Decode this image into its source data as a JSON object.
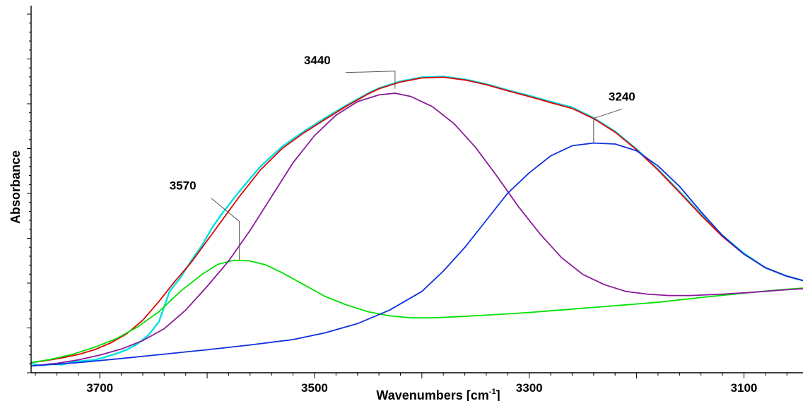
{
  "chart_data": {
    "type": "line",
    "title": "",
    "xlabel": "Wavenumbers [cm",
    "xlabel_sup": "-1",
    "xlabel_end": "]",
    "ylabel": "Absorbance",
    "xlim": [
      3764,
      3045
    ],
    "ylim": [
      0,
      1.0
    ],
    "x_reversed": true,
    "x_ticks": [
      3700,
      3500,
      3300,
      3100
    ],
    "grid": false,
    "legend": "none",
    "series": [
      {
        "color": "#00e0e0",
        "role": "measured",
        "points": [
          [
            3764,
            0.027
          ],
          [
            3755,
            0.022
          ],
          [
            3745,
            0.026
          ],
          [
            3735,
            0.024
          ],
          [
            3725,
            0.032
          ],
          [
            3715,
            0.035
          ],
          [
            3705,
            0.038
          ],
          [
            3695,
            0.046
          ],
          [
            3685,
            0.056
          ],
          [
            3675,
            0.068
          ],
          [
            3665,
            0.085
          ],
          [
            3655,
            0.11
          ],
          [
            3645,
            0.15
          ],
          [
            3635,
            0.24
          ],
          [
            3625,
            0.28
          ],
          [
            3615,
            0.33
          ],
          [
            3605,
            0.375
          ],
          [
            3595,
            0.43
          ],
          [
            3585,
            0.475
          ],
          [
            3570,
            0.535
          ],
          [
            3550,
            0.61
          ],
          [
            3530,
            0.668
          ],
          [
            3510,
            0.712
          ],
          [
            3490,
            0.752
          ],
          [
            3470,
            0.79
          ],
          [
            3450,
            0.825
          ],
          [
            3440,
            0.84
          ],
          [
            3420,
            0.86
          ],
          [
            3400,
            0.872
          ],
          [
            3380,
            0.874
          ],
          [
            3360,
            0.866
          ],
          [
            3340,
            0.852
          ],
          [
            3320,
            0.834
          ],
          [
            3300,
            0.818
          ],
          [
            3280,
            0.8
          ],
          [
            3260,
            0.783
          ],
          [
            3240,
            0.752
          ],
          [
            3220,
            0.712
          ],
          [
            3200,
            0.66
          ],
          [
            3180,
            0.6
          ],
          [
            3160,
            0.535
          ],
          [
            3140,
            0.468
          ],
          [
            3120,
            0.405
          ],
          [
            3100,
            0.352
          ],
          [
            3080,
            0.31
          ],
          [
            3060,
            0.285
          ],
          [
            3045,
            0.272
          ]
        ]
      },
      {
        "color": "#e00000",
        "role": "fit",
        "points": [
          [
            3764,
            0.03
          ],
          [
            3750,
            0.036
          ],
          [
            3735,
            0.044
          ],
          [
            3720,
            0.054
          ],
          [
            3705,
            0.068
          ],
          [
            3690,
            0.088
          ],
          [
            3675,
            0.115
          ],
          [
            3660,
            0.155
          ],
          [
            3645,
            0.21
          ],
          [
            3630,
            0.27
          ],
          [
            3615,
            0.325
          ],
          [
            3600,
            0.39
          ],
          [
            3585,
            0.455
          ],
          [
            3570,
            0.52
          ],
          [
            3550,
            0.6
          ],
          [
            3530,
            0.662
          ],
          [
            3510,
            0.708
          ],
          [
            3490,
            0.748
          ],
          [
            3470,
            0.787
          ],
          [
            3450,
            0.823
          ],
          [
            3440,
            0.838
          ],
          [
            3420,
            0.858
          ],
          [
            3400,
            0.87
          ],
          [
            3380,
            0.872
          ],
          [
            3360,
            0.864
          ],
          [
            3340,
            0.85
          ],
          [
            3320,
            0.832
          ],
          [
            3300,
            0.815
          ],
          [
            3280,
            0.797
          ],
          [
            3260,
            0.78
          ],
          [
            3240,
            0.75
          ],
          [
            3220,
            0.71
          ],
          [
            3200,
            0.658
          ],
          [
            3180,
            0.598
          ],
          [
            3160,
            0.532
          ],
          [
            3140,
            0.465
          ],
          [
            3120,
            0.402
          ],
          [
            3100,
            0.35
          ],
          [
            3080,
            0.31
          ],
          [
            3060,
            0.285
          ],
          [
            3045,
            0.272
          ]
        ]
      },
      {
        "color": "#00e000",
        "role": "component",
        "points": [
          [
            3764,
            0.03
          ],
          [
            3745,
            0.04
          ],
          [
            3725,
            0.055
          ],
          [
            3705,
            0.075
          ],
          [
            3685,
            0.1
          ],
          [
            3665,
            0.135
          ],
          [
            3645,
            0.18
          ],
          [
            3625,
            0.24
          ],
          [
            3605,
            0.29
          ],
          [
            3590,
            0.32
          ],
          [
            3575,
            0.332
          ],
          [
            3560,
            0.33
          ],
          [
            3545,
            0.318
          ],
          [
            3530,
            0.295
          ],
          [
            3510,
            0.26
          ],
          [
            3490,
            0.225
          ],
          [
            3470,
            0.2
          ],
          [
            3450,
            0.18
          ],
          [
            3430,
            0.168
          ],
          [
            3410,
            0.162
          ],
          [
            3390,
            0.162
          ],
          [
            3370,
            0.165
          ],
          [
            3340,
            0.17
          ],
          [
            3300,
            0.178
          ],
          [
            3260,
            0.188
          ],
          [
            3220,
            0.198
          ],
          [
            3180,
            0.208
          ],
          [
            3140,
            0.222
          ],
          [
            3100,
            0.235
          ],
          [
            3070,
            0.244
          ],
          [
            3045,
            0.25
          ]
        ]
      },
      {
        "color": "#8a1a9a",
        "role": "component",
        "points": [
          [
            3764,
            0.02
          ],
          [
            3740,
            0.028
          ],
          [
            3720,
            0.038
          ],
          [
            3700,
            0.052
          ],
          [
            3680,
            0.07
          ],
          [
            3660,
            0.095
          ],
          [
            3640,
            0.13
          ],
          [
            3620,
            0.185
          ],
          [
            3600,
            0.255
          ],
          [
            3580,
            0.33
          ],
          [
            3560,
            0.42
          ],
          [
            3540,
            0.52
          ],
          [
            3520,
            0.62
          ],
          [
            3500,
            0.7
          ],
          [
            3480,
            0.76
          ],
          [
            3460,
            0.8
          ],
          [
            3440,
            0.82
          ],
          [
            3425,
            0.825
          ],
          [
            3410,
            0.815
          ],
          [
            3390,
            0.785
          ],
          [
            3370,
            0.735
          ],
          [
            3350,
            0.665
          ],
          [
            3330,
            0.58
          ],
          [
            3310,
            0.49
          ],
          [
            3290,
            0.41
          ],
          [
            3270,
            0.34
          ],
          [
            3250,
            0.29
          ],
          [
            3230,
            0.26
          ],
          [
            3210,
            0.24
          ],
          [
            3190,
            0.232
          ],
          [
            3170,
            0.228
          ],
          [
            3150,
            0.228
          ],
          [
            3120,
            0.232
          ],
          [
            3090,
            0.238
          ],
          [
            3060,
            0.245
          ],
          [
            3045,
            0.248
          ]
        ]
      },
      {
        "color": "#1030e0",
        "role": "component",
        "points": [
          [
            3764,
            0.02
          ],
          [
            3720,
            0.03
          ],
          [
            3680,
            0.042
          ],
          [
            3640,
            0.055
          ],
          [
            3600,
            0.068
          ],
          [
            3560,
            0.082
          ],
          [
            3520,
            0.098
          ],
          [
            3490,
            0.118
          ],
          [
            3460,
            0.145
          ],
          [
            3430,
            0.185
          ],
          [
            3400,
            0.24
          ],
          [
            3380,
            0.3
          ],
          [
            3360,
            0.37
          ],
          [
            3340,
            0.45
          ],
          [
            3320,
            0.53
          ],
          [
            3300,
            0.59
          ],
          [
            3280,
            0.64
          ],
          [
            3260,
            0.67
          ],
          [
            3240,
            0.678
          ],
          [
            3220,
            0.675
          ],
          [
            3200,
            0.655
          ],
          [
            3180,
            0.61
          ],
          [
            3160,
            0.55
          ],
          [
            3140,
            0.475
          ],
          [
            3120,
            0.405
          ],
          [
            3100,
            0.35
          ],
          [
            3080,
            0.31
          ],
          [
            3060,
            0.285
          ],
          [
            3045,
            0.272
          ]
        ]
      }
    ],
    "annotations": [
      {
        "text": "3570",
        "x": 3570,
        "y": 0.332
      },
      {
        "text": "3440",
        "x": 3425,
        "y": 0.838
      },
      {
        "text": "3240",
        "x": 3240,
        "y": 0.678
      }
    ]
  }
}
